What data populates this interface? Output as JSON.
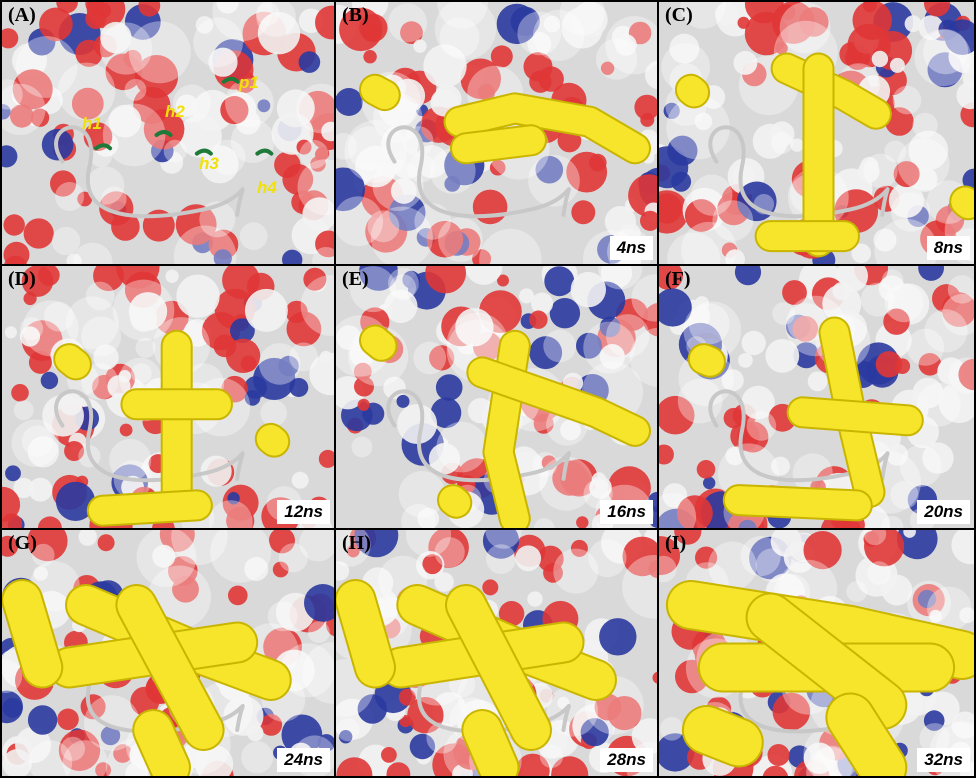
{
  "colors": {
    "surface_base": "#d9d9d9",
    "oxygen_red": "#e03636",
    "nitrogen_blue": "#2a3aa0",
    "ligand_yellow": "#f6e52a",
    "ribbon": "#c8c8c8",
    "site_marker": "#1f7a3a",
    "site_label": "#f1e10b"
  },
  "panels": [
    {
      "label": "(A)",
      "time": "",
      "sites": [
        "h1",
        "h2",
        "p1",
        "h3",
        "h4"
      ],
      "blob": "none"
    },
    {
      "label": "(B)",
      "time": "4ns",
      "blob": "horizontal"
    },
    {
      "label": "(C)",
      "time": "8ns",
      "blob": "vertical-t"
    },
    {
      "label": "(D)",
      "time": "12ns",
      "blob": "vertical"
    },
    {
      "label": "(E)",
      "time": "16ns",
      "blob": "branched"
    },
    {
      "label": "(F)",
      "time": "20ns",
      "blob": "branched-low"
    },
    {
      "label": "(G)",
      "time": "24ns",
      "blob": "large"
    },
    {
      "label": "(H)",
      "time": "28ns",
      "blob": "large"
    },
    {
      "label": "(I)",
      "time": "32ns",
      "blob": "largest"
    }
  ]
}
